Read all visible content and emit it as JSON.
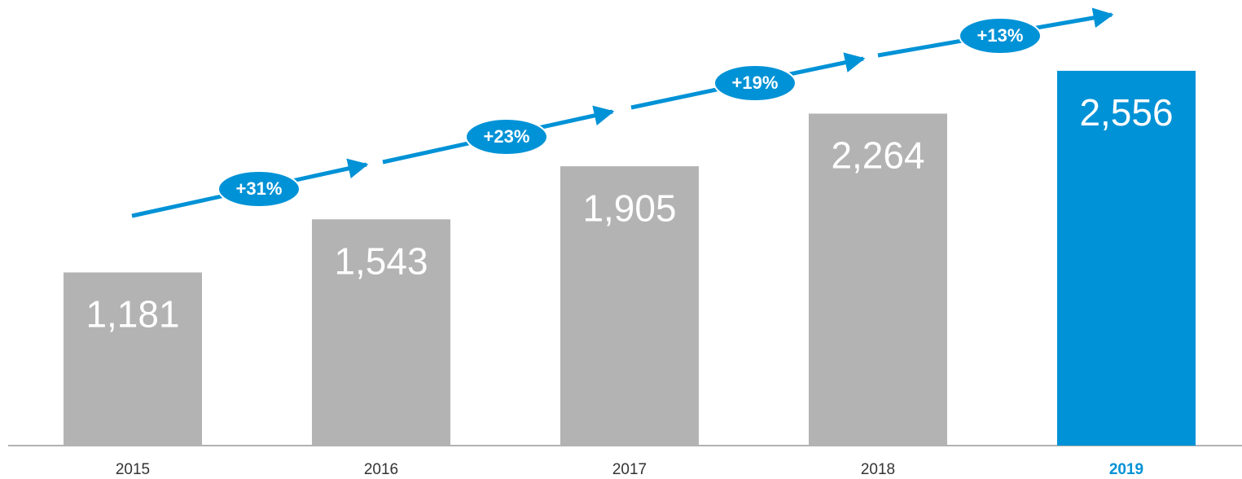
{
  "chart_data": {
    "type": "bar",
    "categories": [
      "2015",
      "2016",
      "2017",
      "2018",
      "2019"
    ],
    "values": [
      1181,
      1543,
      1905,
      2264,
      2556
    ],
    "value_labels": [
      "1,181",
      "1,543",
      "1,905",
      "2,264",
      "2,556"
    ],
    "colors": [
      "#b3b3b3",
      "#b3b3b3",
      "#b3b3b3",
      "#b3b3b3",
      "#0092d6"
    ],
    "ylim": [
      0,
      3000
    ],
    "annotations": [
      "+31%",
      "+23%",
      "+19%",
      "+13%"
    ],
    "annotation_color": "#0092d6"
  }
}
